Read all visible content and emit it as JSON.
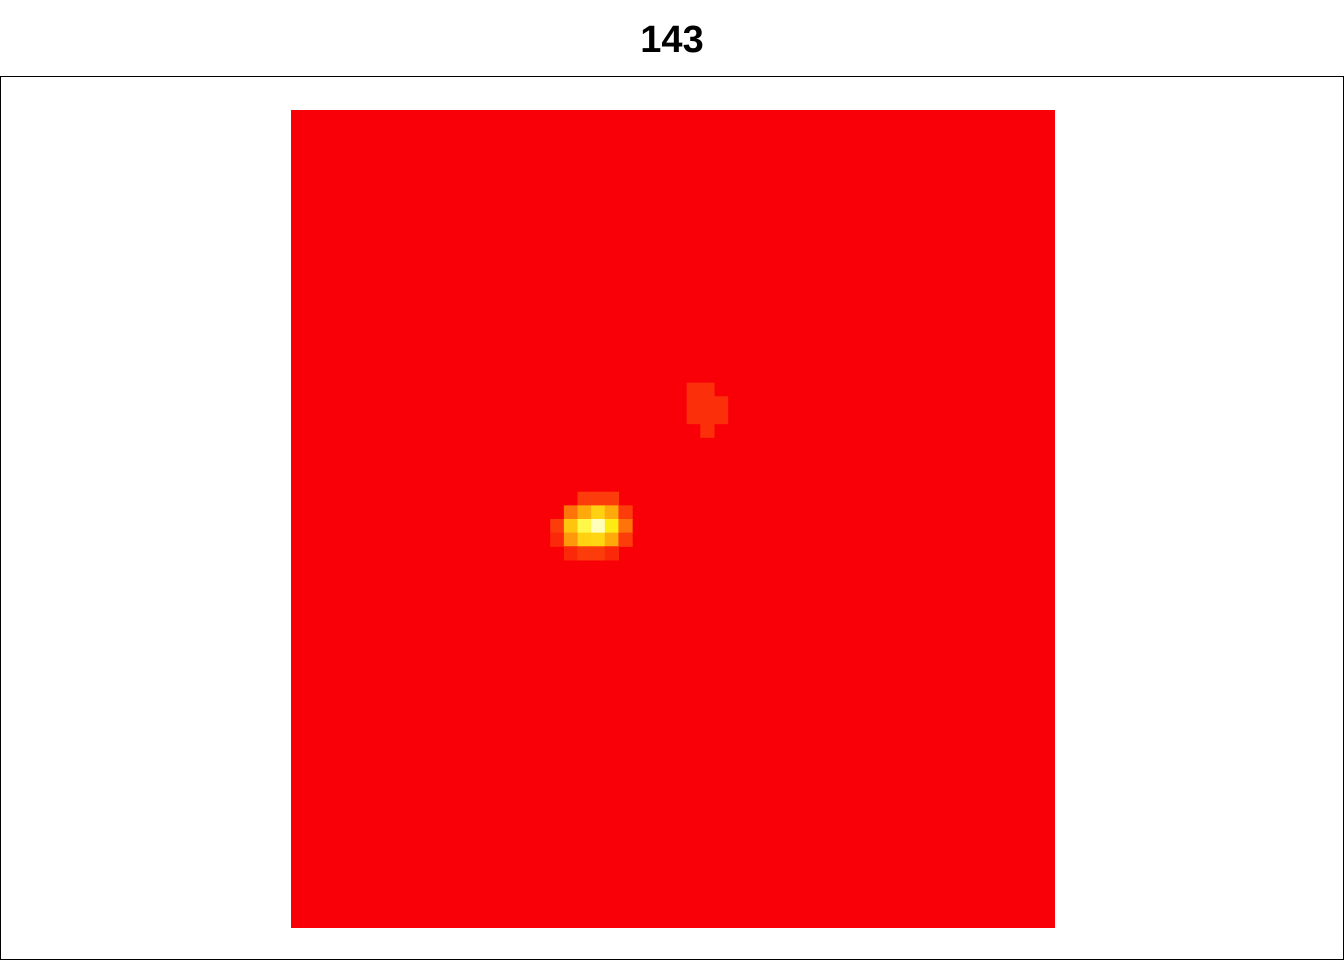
{
  "title": "143",
  "chart_data": {
    "type": "heatmap",
    "title": "143",
    "xlabel": "",
    "ylabel": "",
    "grid": false,
    "legend": "none",
    "colormap": "heat",
    "n_cols": 56,
    "n_rows": 60,
    "background_value": 0.0,
    "colors": {
      "background": "#f90008",
      "page": "#ffffff",
      "frame": "#000000"
    },
    "cells": [
      {
        "col": 29,
        "row": 20,
        "value": 0.12
      },
      {
        "col": 30,
        "row": 20,
        "value": 0.12
      },
      {
        "col": 29,
        "row": 21,
        "value": 0.12
      },
      {
        "col": 30,
        "row": 21,
        "value": 0.12
      },
      {
        "col": 31,
        "row": 21,
        "value": 0.12
      },
      {
        "col": 29,
        "row": 22,
        "value": 0.12
      },
      {
        "col": 30,
        "row": 22,
        "value": 0.12
      },
      {
        "col": 31,
        "row": 22,
        "value": 0.12
      },
      {
        "col": 30,
        "row": 23,
        "value": 0.12
      },
      {
        "col": 21,
        "row": 28,
        "value": 0.15
      },
      {
        "col": 22,
        "row": 28,
        "value": 0.15
      },
      {
        "col": 23,
        "row": 28,
        "value": 0.15
      },
      {
        "col": 20,
        "row": 29,
        "value": 0.3
      },
      {
        "col": 21,
        "row": 29,
        "value": 0.45
      },
      {
        "col": 22,
        "row": 29,
        "value": 0.6
      },
      {
        "col": 23,
        "row": 29,
        "value": 0.45
      },
      {
        "col": 24,
        "row": 29,
        "value": 0.15
      },
      {
        "col": 19,
        "row": 30,
        "value": 0.15
      },
      {
        "col": 20,
        "row": 30,
        "value": 0.55
      },
      {
        "col": 21,
        "row": 30,
        "value": 0.8
      },
      {
        "col": 22,
        "row": 30,
        "value": 0.95
      },
      {
        "col": 23,
        "row": 30,
        "value": 0.7
      },
      {
        "col": 24,
        "row": 30,
        "value": 0.3
      },
      {
        "col": 19,
        "row": 31,
        "value": 0.1
      },
      {
        "col": 20,
        "row": 31,
        "value": 0.4
      },
      {
        "col": 21,
        "row": 31,
        "value": 0.6
      },
      {
        "col": 22,
        "row": 31,
        "value": 0.62
      },
      {
        "col": 23,
        "row": 31,
        "value": 0.45
      },
      {
        "col": 24,
        "row": 31,
        "value": 0.15
      },
      {
        "col": 20,
        "row": 32,
        "value": 0.1
      },
      {
        "col": 21,
        "row": 32,
        "value": 0.15
      },
      {
        "col": 22,
        "row": 32,
        "value": 0.15
      },
      {
        "col": 23,
        "row": 32,
        "value": 0.1
      }
    ]
  }
}
